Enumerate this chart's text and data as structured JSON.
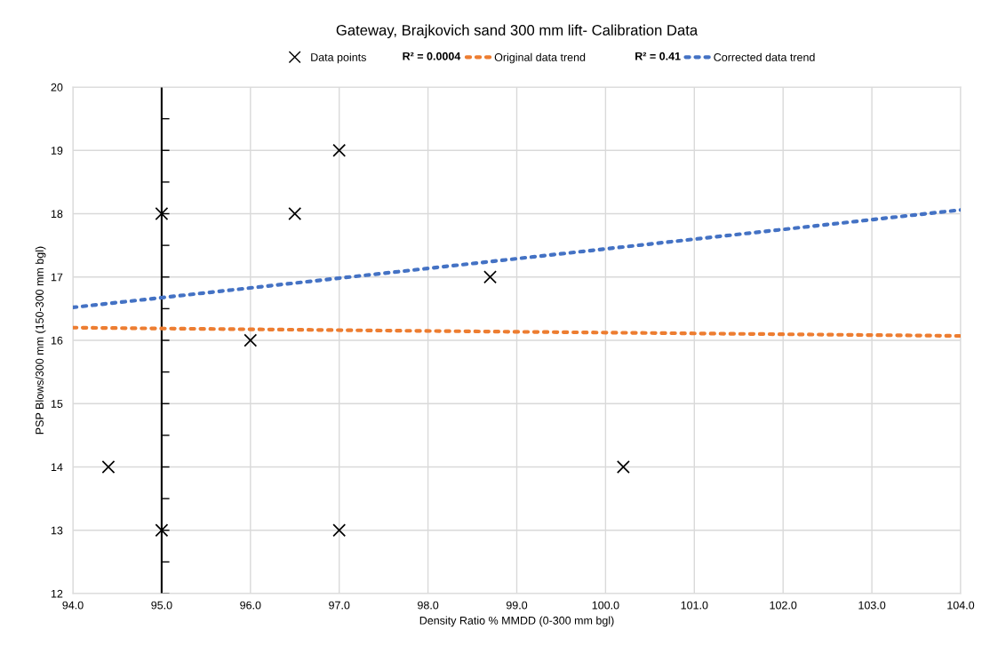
{
  "chart_data": {
    "type": "scatter",
    "title": "Gateway, Brajkovich sand 300 mm lift- Calibration Data",
    "xlabel": "Density Ratio % MMDD (0-300 mm bgl)",
    "ylabel": "PSP Blows/300 mm (150-300 mm bgl)",
    "series": [
      {
        "name": "Data points",
        "color": "#000000",
        "marker": "cross",
        "x": [
          94.4,
          95.0,
          95.0,
          96.0,
          96.5,
          97.0,
          97.0,
          98.7,
          100.2
        ],
        "values": [
          14,
          18,
          13,
          16,
          18,
          19,
          13,
          17,
          14
        ]
      },
      {
        "name": "Original data trend",
        "type": "line",
        "color": "#ed7d31",
        "line_style": "dotted",
        "marker": "none",
        "x": [
          94.0,
          104.0
        ],
        "values": [
          16.2,
          16.07
        ]
      },
      {
        "name": "Corrected data trend",
        "type": "line",
        "color": "#4472c4",
        "line_style": "dotted",
        "marker": "none",
        "x": [
          94.0,
          104.0
        ],
        "values": [
          16.52,
          18.06
        ]
      }
    ],
    "annotations": [
      "R² = 0.0004",
      "R² = 0.41"
    ],
    "ref_lines": [
      {
        "axis": "x",
        "value": 95.0,
        "color": "#000000",
        "line_style": "solid"
      }
    ],
    "xlim": [
      94.0,
      104.0
    ],
    "xticks": [
      {
        "value": 94,
        "label": "94.0"
      },
      {
        "value": 95,
        "label": "95.0"
      },
      {
        "value": 96,
        "label": "96.0"
      },
      {
        "value": 97,
        "label": "97.0"
      },
      {
        "value": 98,
        "label": "98.0"
      },
      {
        "value": 99,
        "label": "99.0"
      },
      {
        "value": 100,
        "label": "100.0"
      },
      {
        "value": 101,
        "label": "101.0"
      },
      {
        "value": 102,
        "label": "102.0"
      },
      {
        "value": 103,
        "label": "103.0"
      },
      {
        "value": 104,
        "label": "104.0"
      }
    ],
    "ylim": [
      12,
      20
    ],
    "yticks": [
      12,
      13,
      14,
      15,
      16,
      17,
      18,
      19,
      20
    ],
    "grid": true,
    "legend": "top"
  }
}
